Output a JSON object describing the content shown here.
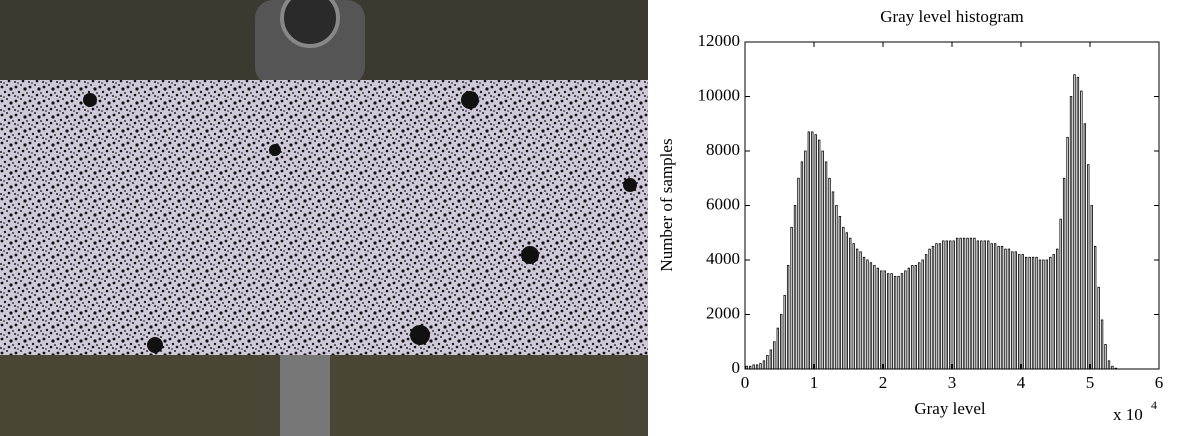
{
  "chart_data": {
    "type": "histogram",
    "title": "Gray level histogram",
    "xlabel": "Gray level",
    "ylabel": "Number of samples",
    "x_multiplier": {
      "base": "x 10",
      "exponent": "4"
    },
    "color": "#000000",
    "xlim": [
      0,
      6
    ],
    "xticks": [
      0,
      1,
      2,
      3,
      4,
      5,
      6
    ],
    "ylim": [
      0,
      12000
    ],
    "yticks": [
      0,
      2000,
      4000,
      6000,
      8000,
      10000,
      12000
    ],
    "bins": [
      0,
      0.05,
      0.1,
      0.15,
      0.2,
      0.25,
      0.3,
      0.35,
      0.4,
      0.45,
      0.5,
      0.55,
      0.6,
      0.65,
      0.7,
      0.75,
      0.8,
      0.85,
      0.9,
      0.95,
      1,
      1.05,
      1.1,
      1.15,
      1.2,
      1.25,
      1.3,
      1.35,
      1.4,
      1.45,
      1.5,
      1.55,
      1.6,
      1.65,
      1.7,
      1.75,
      1.8,
      1.85,
      1.9,
      1.95,
      2,
      2.05,
      2.1,
      2.15,
      2.2,
      2.25,
      2.3,
      2.35,
      2.4,
      2.45,
      2.5,
      2.55,
      2.6,
      2.65,
      2.7,
      2.75,
      2.8,
      2.85,
      2.9,
      2.95,
      3,
      3.05,
      3.1,
      3.15,
      3.2,
      3.25,
      3.3,
      3.35,
      3.4,
      3.45,
      3.5,
      3.55,
      3.6,
      3.65,
      3.7,
      3.75,
      3.8,
      3.85,
      3.9,
      3.95,
      4,
      4.05,
      4.1,
      4.15,
      4.2,
      4.25,
      4.3,
      4.35,
      4.4,
      4.45,
      4.5,
      4.55,
      4.6,
      4.65,
      4.7,
      4.75,
      4.8,
      4.85,
      4.9,
      4.95,
      5,
      5.05,
      5.1,
      5.15,
      5.2,
      5.25,
      5.3,
      5.35,
      5.4
    ],
    "values": [
      100,
      100,
      150,
      150,
      200,
      300,
      500,
      700,
      1000,
      1500,
      2000,
      2700,
      3800,
      5200,
      6000,
      7000,
      7600,
      8000,
      8700,
      8700,
      8600,
      8400,
      8000,
      7600,
      7000,
      6500,
      6000,
      5600,
      5200,
      5000,
      4800,
      4600,
      4400,
      4300,
      4100,
      4000,
      3900,
      3800,
      3700,
      3600,
      3600,
      3500,
      3500,
      3400,
      3400,
      3500,
      3600,
      3700,
      3800,
      3800,
      3900,
      4000,
      4200,
      4400,
      4500,
      4600,
      4600,
      4700,
      4700,
      4700,
      4700,
      4800,
      4800,
      4800,
      4800,
      4800,
      4800,
      4700,
      4700,
      4700,
      4700,
      4600,
      4600,
      4500,
      4500,
      4400,
      4400,
      4300,
      4300,
      4200,
      4200,
      4100,
      4100,
      4100,
      4100,
      4000,
      4000,
      4000,
      4100,
      4200,
      4400,
      5500,
      7000,
      8500,
      10000,
      10800,
      10700,
      10200,
      9000,
      7500,
      6000,
      4500,
      3000,
      1800,
      900,
      300,
      100,
      30
    ]
  }
}
